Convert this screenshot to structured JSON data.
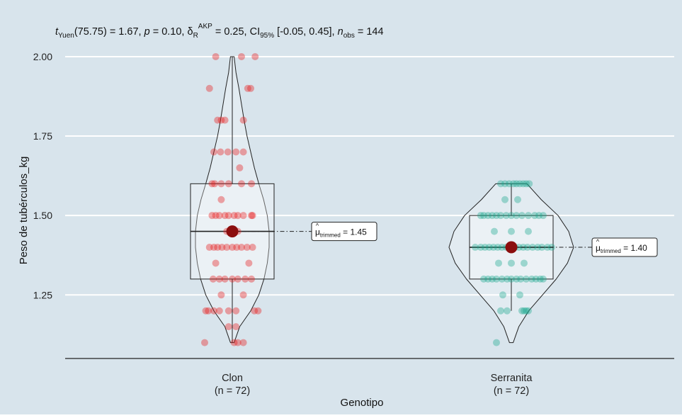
{
  "chart_data": {
    "type": "violin-box-scatter",
    "subtitle": {
      "t_label": "t",
      "t_sub": "Yuen",
      "t_df": "(75.75) = 1.67, ",
      "p_label": "p",
      "p_val": " = 0.10, ",
      "delta": "δ",
      "delta_sub": "R",
      "delta_sup": "AKP",
      "delta_val": " = 0.25, CI",
      "ci_sub": "95%",
      "ci_val": " [-0.05, 0.45], ",
      "n_label": "n",
      "n_sub": "obs",
      "n_val": " = 144"
    },
    "xlabel": "Genotipo",
    "ylabel": "Peso de tubérculos_kg",
    "ylim": [
      1.05,
      2.04
    ],
    "yticks": [
      1.25,
      1.5,
      1.75,
      2.0
    ],
    "ytick_labels": [
      "1.25",
      "1.50",
      "1.75",
      "2.00"
    ],
    "grid": true,
    "groups": [
      {
        "name": "Clon",
        "n_label": "(n = 72)",
        "color": "#e8191a",
        "box": {
          "q1": 1.3,
          "median": 1.45,
          "q3": 1.6,
          "whisker_low": 1.1,
          "whisker_high": 2.0
        },
        "trimmed_mean": 1.45,
        "mean_label": {
          "mu": "μ",
          "sub": "trimmed",
          "val": " = 1.45"
        },
        "violin": [
          [
            1.1,
            0.05
          ],
          [
            1.15,
            0.2
          ],
          [
            1.2,
            0.5
          ],
          [
            1.25,
            0.72
          ],
          [
            1.3,
            0.86
          ],
          [
            1.35,
            0.95
          ],
          [
            1.4,
            1.0
          ],
          [
            1.45,
            1.0
          ],
          [
            1.5,
            0.95
          ],
          [
            1.55,
            0.85
          ],
          [
            1.6,
            0.72
          ],
          [
            1.65,
            0.6
          ],
          [
            1.7,
            0.5
          ],
          [
            1.75,
            0.4
          ],
          [
            1.8,
            0.32
          ],
          [
            1.85,
            0.25
          ],
          [
            1.9,
            0.18
          ],
          [
            1.95,
            0.1
          ],
          [
            2.0,
            0.05
          ]
        ],
        "points": [
          [
            1.9,
            -0.62
          ],
          [
            1.9,
            0.42
          ],
          [
            1.9,
            0.5
          ],
          [
            1.8,
            -0.4
          ],
          [
            1.8,
            -0.3
          ],
          [
            1.8,
            -0.2
          ],
          [
            1.8,
            0.3
          ],
          [
            2.0,
            -0.45
          ],
          [
            2.0,
            0.25
          ],
          [
            2.0,
            0.62
          ],
          [
            1.7,
            -0.5
          ],
          [
            1.7,
            -0.32
          ],
          [
            1.7,
            -0.12
          ],
          [
            1.7,
            0.1
          ],
          [
            1.7,
            0.3
          ],
          [
            1.6,
            -0.55
          ],
          [
            1.6,
            -0.48
          ],
          [
            1.6,
            -0.3
          ],
          [
            1.6,
            -0.1
          ],
          [
            1.6,
            0.25
          ],
          [
            1.6,
            0.52
          ],
          [
            1.5,
            -0.55
          ],
          [
            1.5,
            -0.45
          ],
          [
            1.5,
            -0.35
          ],
          [
            1.5,
            -0.2
          ],
          [
            1.5,
            -0.1
          ],
          [
            1.5,
            0.05
          ],
          [
            1.5,
            0.15
          ],
          [
            1.5,
            0.3
          ],
          [
            1.5,
            0.52
          ],
          [
            1.5,
            0.55
          ],
          [
            1.45,
            -0.05
          ],
          [
            1.45,
            0.05
          ],
          [
            1.45,
            -0.15
          ],
          [
            1.45,
            0.15
          ],
          [
            1.4,
            -0.62
          ],
          [
            1.4,
            -0.5
          ],
          [
            1.4,
            -0.4
          ],
          [
            1.4,
            -0.28
          ],
          [
            1.4,
            -0.15
          ],
          [
            1.4,
            0.0
          ],
          [
            1.4,
            0.12
          ],
          [
            1.4,
            0.25
          ],
          [
            1.4,
            0.4
          ],
          [
            1.4,
            0.55
          ],
          [
            1.3,
            -0.52
          ],
          [
            1.3,
            -0.35
          ],
          [
            1.3,
            -0.2
          ],
          [
            1.3,
            0.0
          ],
          [
            1.3,
            0.15
          ],
          [
            1.3,
            0.35
          ],
          [
            1.3,
            0.52
          ],
          [
            1.25,
            -0.3
          ],
          [
            1.25,
            0.3
          ],
          [
            1.2,
            -0.72
          ],
          [
            1.2,
            -0.65
          ],
          [
            1.2,
            -0.5
          ],
          [
            1.2,
            -0.35
          ],
          [
            1.2,
            -0.1
          ],
          [
            1.2,
            0.1
          ],
          [
            1.2,
            0.6
          ],
          [
            1.2,
            0.7
          ],
          [
            1.15,
            -0.1
          ],
          [
            1.15,
            0.1
          ],
          [
            1.1,
            -0.75
          ],
          [
            1.1,
            0.05
          ],
          [
            1.1,
            0.15
          ],
          [
            1.1,
            0.3
          ],
          [
            1.35,
            -0.45
          ],
          [
            1.35,
            0.45
          ],
          [
            1.55,
            -0.3
          ],
          [
            1.65,
            0.2
          ]
        ]
      },
      {
        "name": "Serranita",
        "n_label": "(n = 72)",
        "color": "#1aa88f",
        "box": {
          "q1": 1.3,
          "median": 1.4,
          "q3": 1.5,
          "whisker_low": 1.2,
          "whisker_high": 1.6
        },
        "trimmed_mean": 1.4,
        "mean_label": {
          "mu": "μ",
          "sub": "trimmed",
          "val": " = 1.40"
        },
        "violin": [
          [
            1.1,
            0.03
          ],
          [
            1.15,
            0.12
          ],
          [
            1.2,
            0.28
          ],
          [
            1.25,
            0.5
          ],
          [
            1.3,
            0.72
          ],
          [
            1.35,
            0.9
          ],
          [
            1.4,
            1.0
          ],
          [
            1.45,
            0.92
          ],
          [
            1.5,
            0.75
          ],
          [
            1.55,
            0.48
          ],
          [
            1.6,
            0.25
          ]
        ],
        "points": [
          [
            1.6,
            -0.15
          ],
          [
            1.6,
            -0.05
          ],
          [
            1.6,
            0.05
          ],
          [
            1.6,
            0.12
          ],
          [
            1.6,
            0.2
          ],
          [
            1.6,
            0.28
          ],
          [
            1.6,
            0.35
          ],
          [
            1.5,
            -0.55
          ],
          [
            1.5,
            -0.45
          ],
          [
            1.5,
            -0.35
          ],
          [
            1.5,
            -0.25
          ],
          [
            1.5,
            -0.12
          ],
          [
            1.5,
            0.0
          ],
          [
            1.5,
            0.12
          ],
          [
            1.5,
            0.25
          ],
          [
            1.5,
            0.4
          ],
          [
            1.5,
            0.55
          ],
          [
            1.4,
            -0.62
          ],
          [
            1.4,
            -0.52
          ],
          [
            1.4,
            -0.42
          ],
          [
            1.4,
            -0.32
          ],
          [
            1.4,
            -0.22
          ],
          [
            1.4,
            -0.12
          ],
          [
            1.4,
            -0.02
          ],
          [
            1.4,
            0.08
          ],
          [
            1.4,
            0.18
          ],
          [
            1.4,
            0.28
          ],
          [
            1.4,
            0.38
          ],
          [
            1.4,
            0.5
          ],
          [
            1.4,
            0.62
          ],
          [
            1.4,
            0.72
          ],
          [
            1.3,
            -0.55
          ],
          [
            1.3,
            -0.45
          ],
          [
            1.3,
            -0.35
          ],
          [
            1.3,
            -0.22
          ],
          [
            1.3,
            -0.1
          ],
          [
            1.3,
            0.0
          ],
          [
            1.3,
            0.12
          ],
          [
            1.3,
            0.22
          ],
          [
            1.3,
            0.35
          ],
          [
            1.3,
            0.48
          ],
          [
            1.3,
            0.58
          ],
          [
            1.2,
            -0.25
          ],
          [
            1.2,
            -0.1
          ],
          [
            1.2,
            0.25
          ],
          [
            1.2,
            0.3
          ],
          [
            1.2,
            0.35
          ],
          [
            1.1,
            -0.35
          ],
          [
            1.45,
            -0.4
          ],
          [
            1.45,
            0.4
          ],
          [
            1.35,
            -0.3
          ],
          [
            1.35,
            0.3
          ],
          [
            1.25,
            0.2
          ],
          [
            1.55,
            0.15
          ],
          [
            1.4,
            0.85
          ],
          [
            1.5,
            -0.65
          ],
          [
            1.3,
            0.68
          ],
          [
            1.4,
            -0.72
          ],
          [
            1.5,
            0.65
          ],
          [
            1.6,
            -0.25
          ],
          [
            1.2,
            0.4
          ],
          [
            1.3,
            -0.65
          ],
          [
            1.45,
            0.0
          ],
          [
            1.35,
            0.0
          ],
          [
            1.25,
            -0.2
          ],
          [
            1.55,
            -0.15
          ],
          [
            1.4,
            0.95
          ],
          [
            1.5,
            0.75
          ],
          [
            1.3,
            0.75
          ],
          [
            1.4,
            -0.85
          ],
          [
            1.6,
            0.42
          ],
          [
            1.5,
            -0.72
          ]
        ]
      }
    ]
  }
}
